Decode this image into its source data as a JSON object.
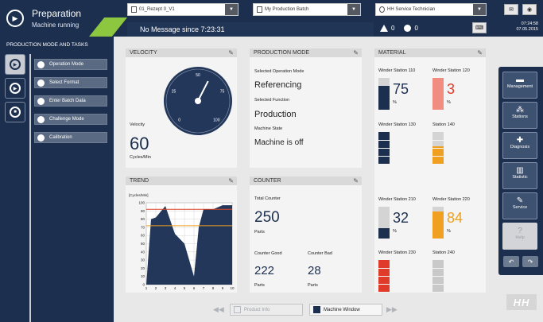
{
  "header": {
    "title": "Preparation",
    "subtitle": "Machine running",
    "recipe": "01_Rezept 0_V1",
    "batch": "My Production Batch",
    "user": "HH Service Technician",
    "message": "No Message since 7:23:31",
    "warnings_count": "0",
    "errors_count": "0",
    "time": "07:24:58",
    "date": "07.05.2015"
  },
  "sidebar": {
    "title": "PRODUCTION MODE AND TASKS",
    "items": [
      {
        "label": "Operation Mode"
      },
      {
        "label": "Select Format"
      },
      {
        "label": "Enter Batch Data"
      },
      {
        "label": "Challenge Mode"
      },
      {
        "label": "Calibration"
      }
    ]
  },
  "velocity": {
    "title": "VELOCITY",
    "label": "Velocity",
    "value": "60",
    "unit": "Cycles/Min",
    "gauge_ticks": [
      "0",
      "25",
      "50",
      "75",
      "100"
    ],
    "gauge_value": 60
  },
  "production_mode": {
    "title": "PRODUCTION MODE",
    "op_label": "Selected Operation Mode",
    "op_value": "Referencing",
    "fn_label": "Selected Function",
    "fn_value": "Production",
    "state_label": "Machine State",
    "state_value": "Machine is off"
  },
  "trend": {
    "title": "TREND",
    "unit": "[Cycles/Min]",
    "y_ticks": [
      "100",
      "90",
      "80",
      "70",
      "60",
      "50",
      "40",
      "30",
      "20",
      "10",
      "0"
    ],
    "x_ticks": [
      "1",
      "2",
      "3",
      "4",
      "5",
      "6",
      "7",
      "8",
      "9",
      "10"
    ]
  },
  "chart_data": {
    "type": "area",
    "x": [
      1,
      1.5,
      2,
      3,
      4,
      5,
      6,
      6.5,
      7,
      8,
      9,
      10
    ],
    "values": [
      0,
      80,
      82,
      96,
      62,
      50,
      10,
      70,
      92,
      92,
      97,
      97
    ],
    "ylim": [
      0,
      100
    ],
    "xlim": [
      1,
      10
    ],
    "reference_lines": [
      {
        "value": 92,
        "color": "#d9472b"
      },
      {
        "value": 72,
        "color": "#f0a020"
      }
    ]
  },
  "counter": {
    "title": "COUNTER",
    "total_label": "Total Counter",
    "total_value": "250",
    "total_unit": "Parts",
    "good_label": "Counter Good",
    "good_value": "222",
    "good_unit": "Parts",
    "bad_label": "Counter Bad",
    "bad_value": "28",
    "bad_unit": "Parts"
  },
  "material": {
    "title": "MATERIAL",
    "stations": [
      {
        "name": "Winder Station 110",
        "value": "75",
        "unit": "%",
        "level": 0.75,
        "color": "#1c2f4f"
      },
      {
        "name": "Winder Station 120",
        "value": "3",
        "unit": "%",
        "level": 1.0,
        "color": "#f08c80",
        "value_color": "#e03a2a"
      },
      {
        "name": "Winder Station 130",
        "value": "",
        "unit": "",
        "level": 1.0,
        "color": "#1c2f4f"
      },
      {
        "name": "Station 140",
        "value": "",
        "unit": "",
        "level": 0.55,
        "color": "#f0a020"
      },
      {
        "name": "Winder Station 210",
        "value": "32",
        "unit": "%",
        "level": 0.32,
        "color": "#1c2f4f"
      },
      {
        "name": "Winder Station 220",
        "value": "84",
        "unit": "%",
        "level": 0.84,
        "color": "#f0a020",
        "value_color": "#f0a020"
      },
      {
        "name": "Winder Station 230",
        "value": "",
        "unit": "",
        "level": 1.0,
        "color": "#e03a2a"
      },
      {
        "name": "Station 240",
        "value": "",
        "unit": "",
        "level": 1.0,
        "color": "#c9c9c9"
      }
    ]
  },
  "rightnav": {
    "items": [
      {
        "label": "Management",
        "icon": "folder-icon"
      },
      {
        "label": "Stations",
        "icon": "network-icon"
      },
      {
        "label": "Diagnosis",
        "icon": "medkit-icon"
      },
      {
        "label": "Statistic",
        "icon": "bar-chart-icon"
      },
      {
        "label": "Service",
        "icon": "wrench-icon"
      },
      {
        "label": "Help",
        "icon": "question-icon"
      }
    ]
  },
  "bottom": {
    "product_info": "Product Info",
    "machine_window": "Machine Window"
  },
  "logo": "HH"
}
